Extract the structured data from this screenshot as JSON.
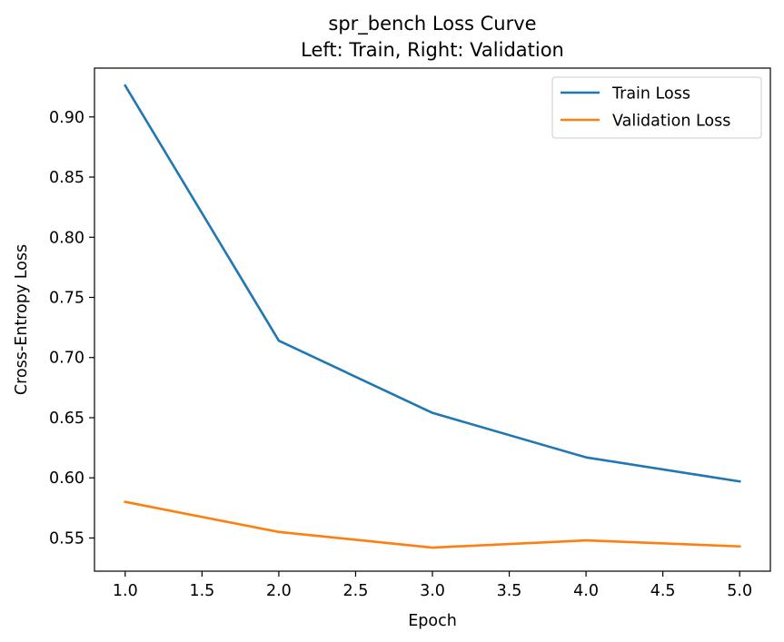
{
  "chart_data": {
    "type": "line",
    "title": "spr_bench Loss Curve",
    "subtitle": "Left: Train, Right: Validation",
    "xlabel": "Epoch",
    "ylabel": "Cross-Entropy Loss",
    "x": [
      1,
      2,
      3,
      4,
      5
    ],
    "xlim": [
      0.8,
      5.2
    ],
    "ylim": [
      0.5224,
      0.9406
    ],
    "xticks": [
      1.0,
      1.5,
      2.0,
      2.5,
      3.0,
      3.5,
      4.0,
      4.5,
      5.0
    ],
    "xtick_labels": [
      "1.0",
      "1.5",
      "2.0",
      "2.5",
      "3.0",
      "3.5",
      "4.0",
      "4.5",
      "5.0"
    ],
    "yticks": [
      0.55,
      0.6,
      0.65,
      0.7,
      0.75,
      0.8,
      0.85,
      0.9
    ],
    "ytick_labels": [
      "0.55",
      "0.60",
      "0.65",
      "0.70",
      "0.75",
      "0.80",
      "0.85",
      "0.90"
    ],
    "grid": false,
    "legend_position": "top-right",
    "series": [
      {
        "name": "Train Loss",
        "color": "#1f77b4",
        "values": [
          0.926,
          0.714,
          0.654,
          0.617,
          0.597
        ]
      },
      {
        "name": "Validation Loss",
        "color": "#ff7f0e",
        "values": [
          0.58,
          0.555,
          0.542,
          0.548,
          0.543
        ]
      }
    ]
  }
}
